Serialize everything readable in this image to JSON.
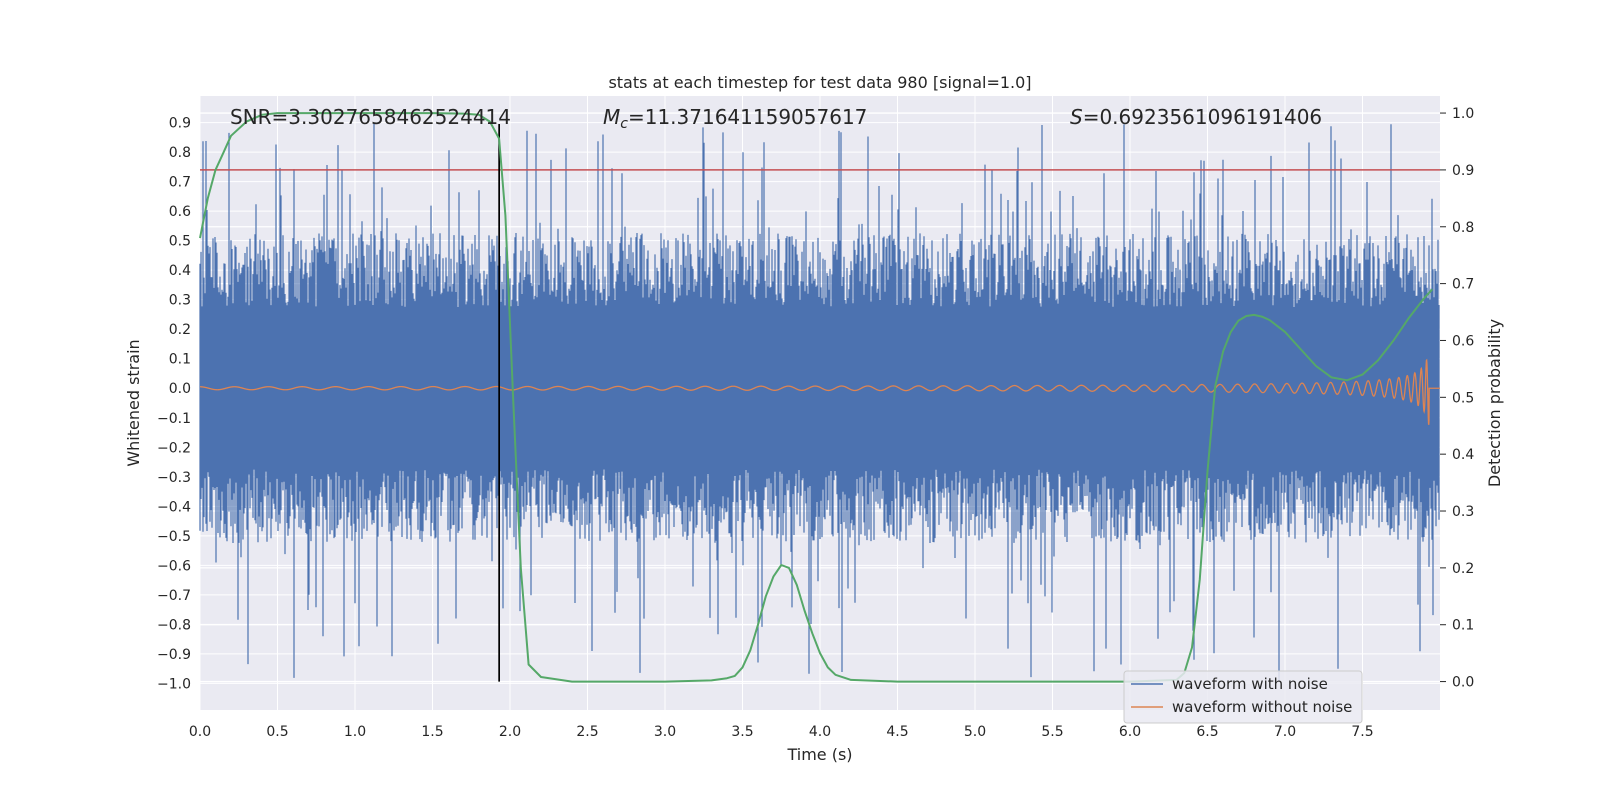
{
  "chart_data": {
    "type": "line",
    "title": "stats at each timestep for test data 980 [signal=1.0]",
    "xlabel": "Time (s)",
    "ylabel": "Whitened strain",
    "y2label": "Detection probability",
    "xlim": [
      0.0,
      8.0
    ],
    "ylim": [
      -1.09,
      0.99
    ],
    "y2lim": [
      -0.05,
      1.03
    ],
    "xticks": [
      "0.0",
      "0.5",
      "1.0",
      "1.5",
      "2.0",
      "2.5",
      "3.0",
      "3.5",
      "4.0",
      "4.5",
      "5.0",
      "5.5",
      "6.0",
      "6.5",
      "7.0",
      "7.5"
    ],
    "yticks": [
      "0.9",
      "0.8",
      "0.7",
      "0.6",
      "0.5",
      "0.4",
      "0.3",
      "0.2",
      "0.1",
      "0.0",
      "−0.1",
      "−0.2",
      "−0.3",
      "−0.4",
      "−0.5",
      "−0.6",
      "−0.7",
      "−0.8",
      "−0.9",
      "−1.0"
    ],
    "y2ticks": [
      "1.0",
      "0.9",
      "0.8",
      "0.7",
      "0.6",
      "0.5",
      "0.4",
      "0.3",
      "0.2",
      "0.1",
      "0.0"
    ],
    "threshold": 0.9,
    "marker_time": 1.93,
    "annotations": {
      "snr": "SNR=3.3027658462524414",
      "mc_label": "M",
      "mc_sub": "c",
      "mc_value": "=11.371641159057617",
      "s_label": "S",
      "s_value": "=0.6923561096191406"
    },
    "legend": {
      "position": "lower-right",
      "entries": [
        "waveform with noise",
        "waveform without noise"
      ]
    },
    "noise_envelope": {
      "max": 0.9,
      "min": -1.0,
      "dense_band": [
        -0.5,
        0.5
      ]
    },
    "chirp": {
      "start": 0.0,
      "end": 7.93,
      "initial_amplitude": 0.005,
      "peak_amplitude": 0.13
    },
    "series": [
      {
        "name": "detection probability",
        "x": [
          0.0,
          0.05,
          0.1,
          0.15,
          0.2,
          0.3,
          0.4,
          0.5,
          1.0,
          1.5,
          1.7,
          1.8,
          1.87,
          1.93,
          1.97,
          2.02,
          2.07,
          2.12,
          2.2,
          2.4,
          3.0,
          3.3,
          3.4,
          3.45,
          3.5,
          3.55,
          3.6,
          3.65,
          3.7,
          3.75,
          3.8,
          3.85,
          3.9,
          3.95,
          4.0,
          4.05,
          4.1,
          4.2,
          4.5,
          5.0,
          5.5,
          6.0,
          6.3,
          6.35,
          6.4,
          6.45,
          6.5,
          6.55,
          6.6,
          6.65,
          6.7,
          6.75,
          6.8,
          6.85,
          6.9,
          7.0,
          7.1,
          7.2,
          7.3,
          7.4,
          7.5,
          7.6,
          7.7,
          7.8,
          7.9,
          7.95
        ],
        "values": [
          0.78,
          0.85,
          0.9,
          0.93,
          0.96,
          0.985,
          0.997,
          1.0,
          1.0,
          1.0,
          0.999,
          0.997,
          0.985,
          0.955,
          0.82,
          0.5,
          0.2,
          0.03,
          0.008,
          0.0,
          0.0,
          0.002,
          0.006,
          0.01,
          0.025,
          0.055,
          0.1,
          0.15,
          0.185,
          0.205,
          0.2,
          0.17,
          0.125,
          0.085,
          0.05,
          0.025,
          0.012,
          0.003,
          0.0,
          0.0,
          0.0,
          0.0,
          0.003,
          0.015,
          0.06,
          0.18,
          0.37,
          0.52,
          0.58,
          0.615,
          0.635,
          0.643,
          0.645,
          0.642,
          0.636,
          0.615,
          0.585,
          0.555,
          0.535,
          0.53,
          0.54,
          0.565,
          0.6,
          0.64,
          0.675,
          0.69
        ]
      },
      {
        "name": "waveform with noise"
      },
      {
        "name": "waveform without noise"
      }
    ],
    "colors": {
      "background": "#eaeaf2",
      "grid": "#ffffff",
      "noise": "#4c72b0",
      "clean": "#dd8452",
      "probability": "#55a868",
      "threshold": "#c44e52",
      "marker": "#000000",
      "legend_bg": "#eaeaf2",
      "legend_border": "#cccccc"
    }
  }
}
